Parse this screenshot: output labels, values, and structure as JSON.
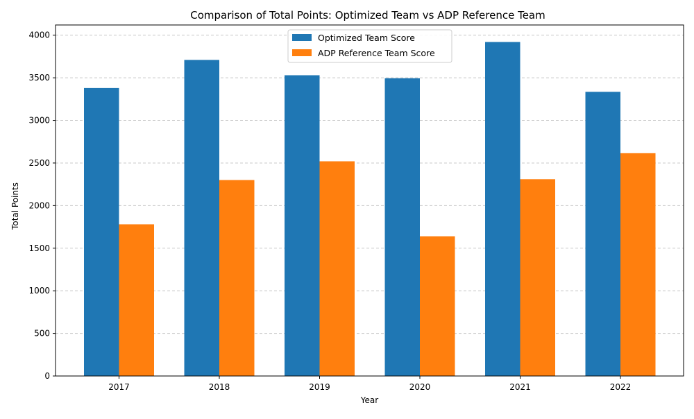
{
  "chart_data": {
    "type": "bar",
    "title": "Comparison of Total Points: Optimized Team vs ADP Reference Team",
    "xlabel": "Year",
    "ylabel": "Total Points",
    "categories": [
      "2017",
      "2018",
      "2019",
      "2020",
      "2021",
      "2022"
    ],
    "series": [
      {
        "name": "Optimized Team Score",
        "color": "#1f77b4",
        "values": [
          3380,
          3710,
          3530,
          3495,
          3920,
          3335
        ]
      },
      {
        "name": "ADP Reference Team Score",
        "color": "#ff7f0e",
        "values": [
          1780,
          2300,
          2520,
          1640,
          2310,
          2615
        ]
      }
    ],
    "ylim": [
      0,
      4120
    ],
    "yticks": [
      0,
      500,
      1000,
      1500,
      2000,
      2500,
      3000,
      3500,
      4000
    ],
    "grid": "horizontal dashed",
    "legend_position": "upper center"
  }
}
